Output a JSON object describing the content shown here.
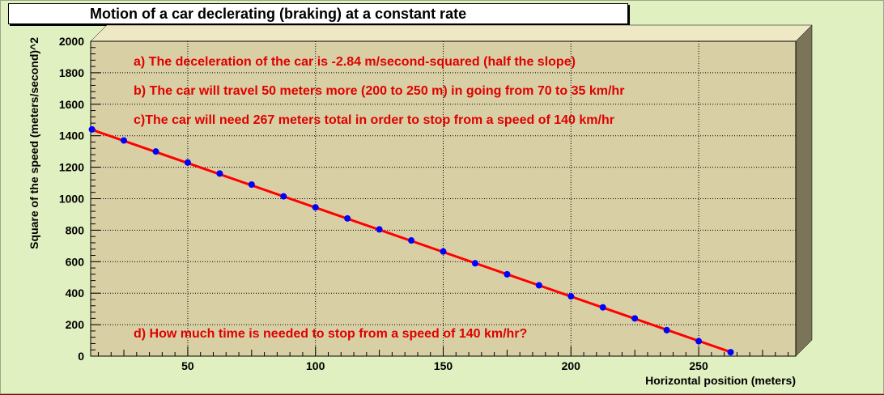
{
  "chart_data": {
    "type": "scatter",
    "title": "Motion of a car declerating (braking) at a constant rate",
    "xlabel": "Horizontal position (meters)",
    "ylabel": "Square of the speed (meters/second)^2",
    "xlim": [
      12,
      288
    ],
    "ylim": [
      0,
      2000
    ],
    "x_ticks": [
      50,
      100,
      150,
      200,
      250
    ],
    "y_ticks": [
      0,
      200,
      400,
      600,
      800,
      1000,
      1200,
      1400,
      1600,
      1800,
      2000
    ],
    "grid": true,
    "points": {
      "x": [
        12.5,
        25,
        37.5,
        50,
        62.5,
        75,
        87.5,
        100,
        112.5,
        125,
        137.5,
        150,
        162.5,
        175,
        187.5,
        200,
        212.5,
        225,
        237.5,
        250,
        262.5
      ],
      "y": [
        1440,
        1370,
        1300,
        1230,
        1160,
        1090,
        1015,
        945,
        875,
        805,
        735,
        665,
        590,
        520,
        450,
        380,
        310,
        240,
        165,
        95,
        25
      ]
    },
    "fit_line": {
      "x": [
        12,
        262.5
      ],
      "y": [
        1441,
        26
      ]
    },
    "annotations": [
      "a) The deceleration of the car is -2.84 m/second-squared (half the slope)",
      "b) The car will travel 50 meters more (200 to 250 m) in going from 70 to 35 km/hr",
      "c)The car will need 267 meters total in order to stop from a speed of 140 km/hr",
      "d) How much time is needed to stop from a speed of 140 km/hr?"
    ],
    "colors": {
      "canvas": "#e0f0c0",
      "plot_bg": "#d8cfa4",
      "frame_light": "#efe8c4",
      "frame_dark": "#7a7458",
      "line": "#ff0000",
      "markers": "#0000ff",
      "annotation_text": "#e00000"
    }
  }
}
